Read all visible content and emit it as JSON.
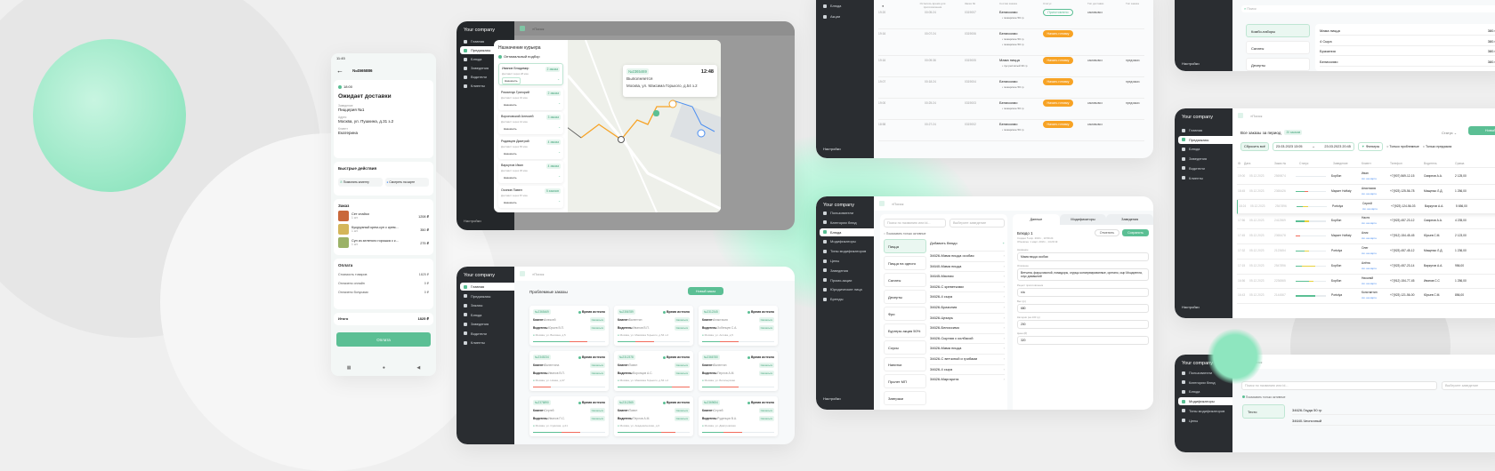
{
  "colors": {
    "accent": "#5bbf94",
    "sidebar": "#2a2d31",
    "orange": "#f7a325",
    "danger": "#f26b5b",
    "link": "#4b8ef0"
  },
  "company": "Your company",
  "search_placeholder": "Поиск",
  "settings_label": "Настройки",
  "phone": {
    "time": "11:45",
    "order_no": "№4565886",
    "eta": "18:00",
    "status": "Ожидает доставки",
    "venue_label": "Заведение",
    "venue": "Пиццерия №1",
    "address_label": "Адрес",
    "address": "Москва, ул. Пушкина, д.31 з.2",
    "client_label": "Клиент",
    "client": "Екатерина",
    "quick_title": "Быстрые действия",
    "call_btn": "Позвонить клиенту",
    "map_btn": "Смотреть на карте",
    "order_title": "Заказ",
    "items": [
      {
        "name": "Сет спайси",
        "qty": "1 шт.",
        "price": "1208 ₽"
      },
      {
        "name": "Кукурузный крем-суп с крем...",
        "qty": "1 шт.",
        "price": "350 ₽"
      },
      {
        "name": "Суп из зеленого горошка с к...",
        "qty": "1 шт.",
        "price": "275 ₽"
      }
    ],
    "payment_title": "Оплата",
    "payment_rows": [
      {
        "label": "Стоимость товаров",
        "value": "1825 ₽"
      },
      {
        "label": "Оплачено онлайн",
        "value": "0 ₽"
      },
      {
        "label": "Оплачено бонусами",
        "value": "0 ₽"
      }
    ],
    "total_label": "Итого",
    "total": "1825 ₽",
    "pay_btn": "Оплата"
  },
  "map_screen": {
    "nav": [
      "Главная",
      "Предзаказы",
      "Блюда",
      "Заведения",
      "Водители",
      "Клиенты"
    ],
    "active_nav": 1,
    "modal_title": "Назначение курьера",
    "optimal_label": "Оптимальный подбор",
    "assign_label": "Назначить",
    "couriers": [
      {
        "name": "Иванов Владимир",
        "eta": "Доставит через 28 мин",
        "orders": "2 заказа"
      },
      {
        "name": "Романчук Григорий",
        "eta": "Доставит через 32 мин",
        "orders": "2 заказа"
      },
      {
        "name": "Вороновский Алексей",
        "eta": "Доставит через 44 мин",
        "orders": "3 заказа"
      },
      {
        "name": "Родивцев Дмитрий",
        "eta": "Доставит через 65 мин",
        "orders": "4 заказа"
      },
      {
        "name": "Варкутов Иван",
        "eta": "Доставит через 36 мин",
        "orders": "4 заказа"
      },
      {
        "name": "Осипов Павел",
        "eta": "Доставит через 87 мин",
        "orders": "5 заказов"
      }
    ],
    "popup": {
      "order": "№2365469",
      "time": "12:48",
      "status": "Выполняется",
      "address": "Москва, ул. Максима Горького, д.54 з.2"
    }
  },
  "kitchen": {
    "nav": [
      "Блюда",
      "Акции"
    ],
    "headers": [
      "Осталось время для приготовления",
      "Заказ №",
      "Состав заказа",
      "Статус",
      "Тип доставки",
      "Тип заказа"
    ],
    "rows": [
      {
        "time": "19:20",
        "left": "00:05:24",
        "no": "0319007",
        "dish": "Белиссимо",
        "parts": [
          "пожарское 50 гр"
        ],
        "status": "Приготовлено",
        "done": true,
        "delivery": "самовывоз",
        "type": ""
      },
      {
        "time": "19:16",
        "left": "00:07:24",
        "no": "0319006",
        "dish": "Белиссимо",
        "parts": [
          "пожарское 50 гр",
          "пожарское 50 гр"
        ],
        "status": "Начать готовку",
        "done": false,
        "delivery": "",
        "type": ""
      },
      {
        "time": "19:16",
        "left": "00:09:36",
        "no": "0319005",
        "dish": "Мама пицца",
        "parts": [
          "лук репчатый 30 гр"
        ],
        "status": "Начать готовку",
        "done": false,
        "delivery": "самовывоз",
        "type": "предзаказ"
      },
      {
        "time": "19:07",
        "left": "00:18:24",
        "no": "0319004",
        "dish": "Белиссимо",
        "parts": [
          "пожарское 50 гр"
        ],
        "status": "Начать готовку",
        "done": false,
        "delivery": "",
        "type": "предзаказ"
      },
      {
        "time": "19:00",
        "left": "00:25:24",
        "no": "0319003",
        "dish": "Белиссимо",
        "parts": [
          "пожарское 50 гр"
        ],
        "status": "Начать готовку",
        "done": false,
        "delivery": "самовывоз",
        "type": "предзаказ"
      },
      {
        "time": "18:58",
        "left": "00:27:24",
        "no": "0319002",
        "dish": "Белиссимо",
        "parts": [
          "пожарское 50 гр"
        ],
        "status": "Начать готовку",
        "done": false,
        "delivery": "самовывоз",
        "type": ""
      }
    ]
  },
  "problems": {
    "nav": [
      "Главная",
      "Предзаказы",
      "Заказы",
      "Блюда",
      "Заведения",
      "Водители",
      "Клиенты"
    ],
    "active_nav": 0,
    "title": "Проблемные заказы",
    "new_order": "Новый заказ",
    "expired": "Время истекло",
    "client_label": "Клиент:",
    "driver_label": "Водитель:",
    "contact": "Связаться",
    "cards": [
      {
        "no": "№2365469",
        "client": "Алексей",
        "driver": "Юрьев В.П.",
        "addr": "Москва, ул. Вокзина, д.5",
        "green": 50,
        "red": 25
      },
      {
        "no": "№2356789",
        "client": "Валентин",
        "driver": "Иванов В.П.",
        "addr": "Москва, ул. Максима Горького, д.54 з.2",
        "green": 25,
        "red": 25
      },
      {
        "no": "№2312345",
        "client": "Анастасия",
        "driver": "Зобенцев С.А.",
        "addr": "Москва, ул. Актова, д.5",
        "green": 25,
        "red": 25
      },
      {
        "no": "№2345234",
        "client": "Валентина",
        "driver": "Иванов В.П.",
        "addr": "Москва, ул. Новая, д.37",
        "green": 0,
        "red": 25
      },
      {
        "no": "№2312378",
        "client": "Павел",
        "driver": "Воронцов А.С.",
        "addr": "Москва, ул. Максима Горького, д.54 з.2",
        "green": 75,
        "red": 25
      },
      {
        "no": "№2366780",
        "client": "Валентин",
        "driver": "Перлов А.М.",
        "addr": "Москва, ул. Богатырская",
        "green": 25,
        "red": 25
      },
      {
        "no": "№2376890",
        "client": "Сергей",
        "driver": "Иванов П.С.",
        "addr": "Москва, ул. Сумская, д.21",
        "green": 40,
        "red": 25
      },
      {
        "no": "№2312365",
        "client": "Павел",
        "driver": "Перлов А.М.",
        "addr": "Москва, ул. Академическая, д.3",
        "green": 60,
        "red": 20
      },
      {
        "no": "№2369654",
        "client": "Сергей",
        "driver": "Руденцов В.А.",
        "addr": "Москва, ул. Дмитровская",
        "green": 30,
        "red": 25
      }
    ]
  },
  "dishes": {
    "nav": [
      "Пользователи",
      "Категории блюд",
      "Блюда",
      "Модификаторы",
      "Типы модификаторов",
      "Цены",
      "Заведения",
      "Промо-акции",
      "Юридические лица",
      "Бренды"
    ],
    "active_nav": 2,
    "search_placeholder": "Поиск по названию или id...",
    "venue_placeholder": "Выберите заведение",
    "active_only": "Показывать только активные",
    "categories": [
      "Пицца",
      "Пицца на одного",
      "Салаты",
      "Десерты",
      "Фри",
      "Бургеры акция 50%",
      "Соусы",
      "Напитки",
      "Пролет МП",
      "Завтраки"
    ],
    "add_dish": "Добавить блюдо",
    "items": [
      "34626-Мама пицца особая",
      "34640-Мама пицца",
      "34645-Мясная",
      "34626-С креветками",
      "34626-4 сыра",
      "34626-Бразилия",
      "34626-Цезарь",
      "34626-Белиссимо",
      "34626-Сырная с колбасой",
      "34626-Мама пицца",
      "34626-С ветчиной и грибами",
      "34626-4 сыра",
      "34626-Маргарита"
    ],
    "tabs": [
      "Данные",
      "Модификаторы",
      "Заведения"
    ],
    "dish_title": "Блюдо 1",
    "cancel": "Отменить",
    "save": "Сохранить",
    "created": "Создан: 5 апр. 2016 г., 10:59:24",
    "updated": "Обновлен: 1 март. 2016 г., 14:29:19",
    "fields": [
      {
        "label": "Название",
        "value": "Мама пицца особая"
      },
      {
        "label": "Описание",
        "value": "Ветчина, фарш мясной, помидоры, огурцы консервированные, орегано, сыр Моцарелла, соус домашний"
      },
      {
        "label": "Рецепт приготовления",
        "value": "n/a"
      },
      {
        "label": "Вес (гр)",
        "value": "680"
      },
      {
        "label": "Калории (на 100 гр)",
        "value": "200"
      },
      {
        "label": "Цена (₽)",
        "value": "320"
      }
    ]
  },
  "combo": {
    "categories": [
      "Комбо-наборы",
      "Салаты",
      "Десерты"
    ],
    "items": [
      {
        "name": "Мама пицца",
        "price": "380.00 ₽"
      },
      {
        "name": "4 Сыра",
        "price": "380.00 ₽"
      },
      {
        "name": "Бразилия",
        "price": "380.00 ₽"
      },
      {
        "name": "Белиссимо",
        "price": "380.00 ₽"
      }
    ]
  },
  "orders": {
    "nav": [
      "Главная",
      "Предзаказы",
      "Блюда",
      "Заведения",
      "Водители",
      "Клиенты"
    ],
    "active_nav": 1,
    "title": "Все заказы за период",
    "count": "20 заказов",
    "status_label": "Статус",
    "new_order": "Новый заказ",
    "reset": "Сбросить всё",
    "date_from": "23.03.2023 13:05",
    "date_to": "23.03.2023 20:45",
    "filters": "Фильтры",
    "only_problem": "Только проблемные",
    "only_preorder": "Только предзаказ",
    "columns": [
      "Дата",
      "Заказ №",
      "Статус",
      "Заведение",
      "Клиент",
      "Телефон",
      "Водитель",
      "Сумма"
    ],
    "map_link": "см. на карте",
    "rows": [
      {
        "time": "19:00",
        "date": "05.12.2023",
        "no": "2569874",
        "venue": "Борбон",
        "client": "Иван",
        "phone": "+7(907) 569-12-15",
        "driver": "Смирнов А.А.",
        "sum": "2 125,00"
      },
      {
        "time": "18:45",
        "date": "05.12.2023",
        "no": "2365426",
        "venue": "Маркет Hoffaty",
        "client": "Анастасия",
        "phone": "+7(923) 125-56-78",
        "driver": "Мищенко Л.Д.",
        "sum": "1 256,00"
      },
      {
        "time": "18:24",
        "date": "05.12.2023",
        "no": "2547896",
        "venue": "Portolya",
        "client": "Сергей",
        "phone": "+7(923) 124-56-03",
        "driver": "Варкутов А.А.",
        "sum": "5 656,00"
      },
      {
        "time": "17:56",
        "date": "05.12.2023",
        "no": "2412569",
        "venue": "Борбон",
        "client": "Настя",
        "phone": "+7(923) 457-23-12",
        "driver": "Смирнов А.А.",
        "sum": "4 235,00"
      },
      {
        "time": "17:45",
        "date": "05.12.2023",
        "no": "2365478",
        "venue": "Маркет Hoffaty",
        "client": "Алик",
        "phone": "+7(912) 154-45-45",
        "driver": "Юрьев С.М.",
        "sum": "2 123,00"
      },
      {
        "time": "17:32",
        "date": "05.12.2023",
        "no": "2123654",
        "venue": "Portolya",
        "client": "Олег",
        "phone": "+7(923) 457-45-12",
        "driver": "Мищенко Л.Д.",
        "sum": "1 236,00"
      },
      {
        "time": "17:15",
        "date": "05.12.2023",
        "no": "2547896",
        "venue": "Борбон",
        "client": "Алёна",
        "phone": "+7(923) 457-23-14",
        "driver": "Варкутов А.А.",
        "sum": "956,00"
      },
      {
        "time": "16:56",
        "date": "05.12.2023",
        "no": "2236565",
        "venue": "Борбон",
        "client": "Николай",
        "phone": "+7(912) 154-77-45",
        "driver": "Иванов С.С",
        "sum": "1 256,00"
      },
      {
        "time": "16:43",
        "date": "05.12.2023",
        "no": "2144567",
        "venue": "Portolya",
        "client": "Константин",
        "phone": "+7(923) 121-56-00",
        "driver": "Юрьев С.М.",
        "sum": "856,00"
      }
    ]
  },
  "modifiers": {
    "nav": [
      "Пользователи",
      "Категории блюд",
      "Блюда",
      "Модификаторы",
      "Типы модификаторов",
      "Цены"
    ],
    "active_nav": 3,
    "category": "Тесто",
    "items": [
      "34626-Гауда 50 гр",
      "34640-Чесночный"
    ]
  }
}
